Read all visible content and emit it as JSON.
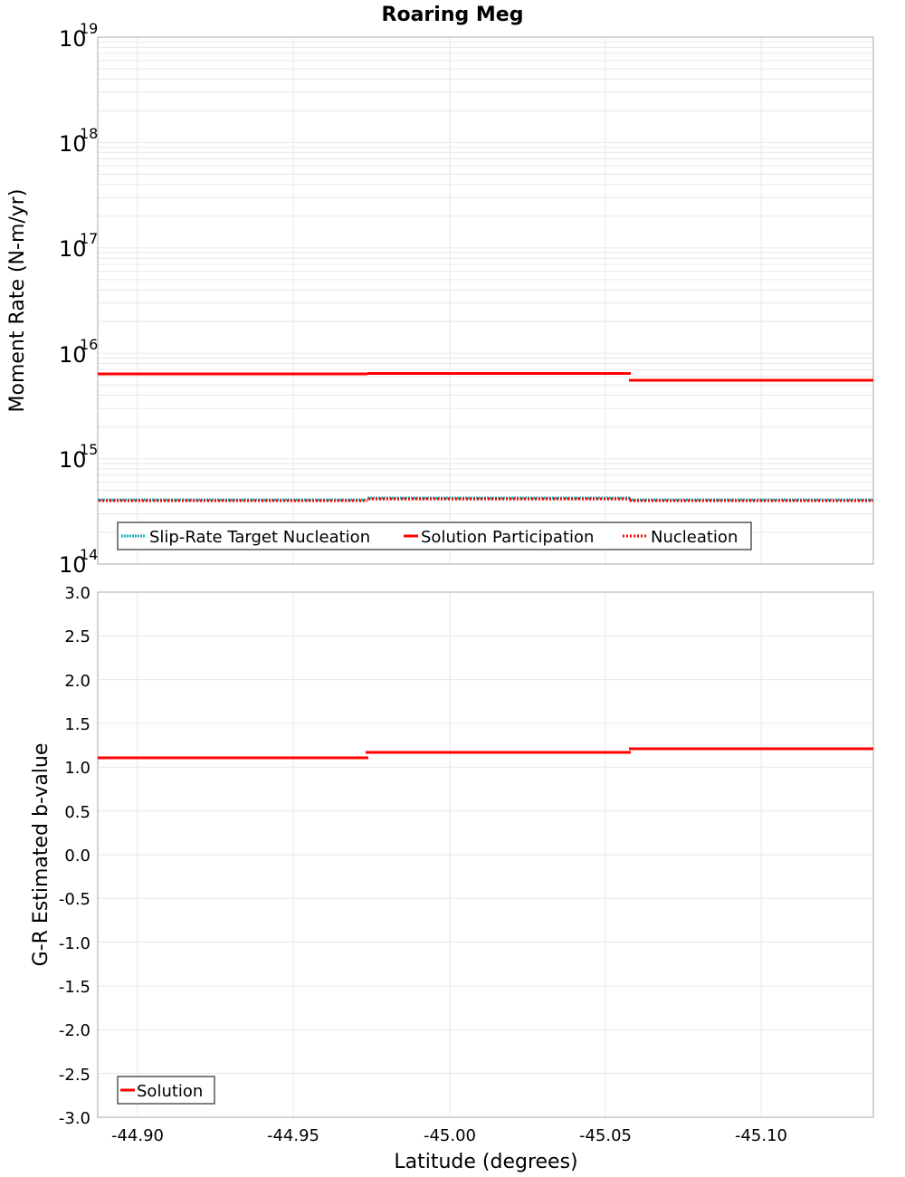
{
  "chart_data": [
    {
      "type": "line",
      "title": "Roaring Meg",
      "xlabel": "",
      "ylabel": "Moment Rate (N-m/yr)",
      "yscale": "log",
      "ylim": [
        100000000000000.0,
        1e+19
      ],
      "xlim": [
        -44.887,
        -45.136
      ],
      "x_reversed": true,
      "y_tick_labels": [
        "10^14",
        "10^15",
        "10^16",
        "10^17",
        "10^18",
        "10^19"
      ],
      "grid": true,
      "legend_position": "lower-left",
      "step_edges_latitude": [
        -44.887,
        -44.974,
        -45.058,
        -45.136
      ],
      "series": [
        {
          "name": "Slip-Rate Target Nucleation",
          "style": "dotted",
          "color": "#1fb2b8",
          "values": [
            400000000000000.0,
            420000000000000.0,
            400000000000000.0
          ]
        },
        {
          "name": "Solution Participation",
          "style": "solid",
          "color": "#ff0000",
          "values": [
            6300000000000000.0,
            6400000000000000.0,
            5500000000000000.0
          ]
        },
        {
          "name": "Nucleation",
          "style": "dotted",
          "color": "#ff0000",
          "values": [
            390000000000000.0,
            410000000000000.0,
            390000000000000.0
          ]
        }
      ]
    },
    {
      "type": "line",
      "title": "",
      "xlabel": "Latitude (degrees)",
      "ylabel": "G-R Estimated b-value",
      "ylim": [
        -3.0,
        3.0
      ],
      "xlim": [
        -44.887,
        -45.136
      ],
      "x_reversed": true,
      "x_tick_labels": [
        "-44.90",
        "-44.95",
        "-45.00",
        "-45.05",
        "-45.10"
      ],
      "y_tick_labels": [
        "3.0",
        "2.5",
        "2.0",
        "1.5",
        "1.0",
        "0.5",
        "0.0",
        "-0.5",
        "-1.0",
        "-1.5",
        "-2.0",
        "-2.5",
        "-3.0"
      ],
      "grid": true,
      "legend_position": "lower-left",
      "step_edges_latitude": [
        -44.887,
        -44.974,
        -45.058,
        -45.136
      ],
      "series": [
        {
          "name": "Solution",
          "style": "solid",
          "color": "#ff0000",
          "values": [
            1.11,
            1.17,
            1.21
          ]
        }
      ]
    }
  ],
  "title": "Roaring Meg",
  "top": {
    "ylabel": "Moment Rate (N-m/yr)",
    "ticks": [
      {
        "base": "10",
        "exp": "19"
      },
      {
        "base": "10",
        "exp": "18"
      },
      {
        "base": "10",
        "exp": "17"
      },
      {
        "base": "10",
        "exp": "16"
      },
      {
        "base": "10",
        "exp": "15"
      },
      {
        "base": "10",
        "exp": "14"
      }
    ],
    "legend": [
      "Slip-Rate Target Nucleation",
      "Solution Participation",
      "Nucleation"
    ]
  },
  "bottom": {
    "ylabel": "G-R Estimated b-value",
    "xlabel": "Latitude (degrees)",
    "yticks": [
      "3.0",
      "2.5",
      "2.0",
      "1.5",
      "1.0",
      "0.5",
      "0.0",
      "-0.5",
      "-1.0",
      "-1.5",
      "-2.0",
      "-2.5",
      "-3.0"
    ],
    "xticks": [
      "-44.90",
      "-44.95",
      "-45.00",
      "-45.05",
      "-45.10"
    ],
    "legend": [
      "Solution"
    ]
  },
  "colors": {
    "red": "#ff0000",
    "teal": "#1fb2b8",
    "grid": "#e8e8e8",
    "frame": "#aaaaaa"
  }
}
